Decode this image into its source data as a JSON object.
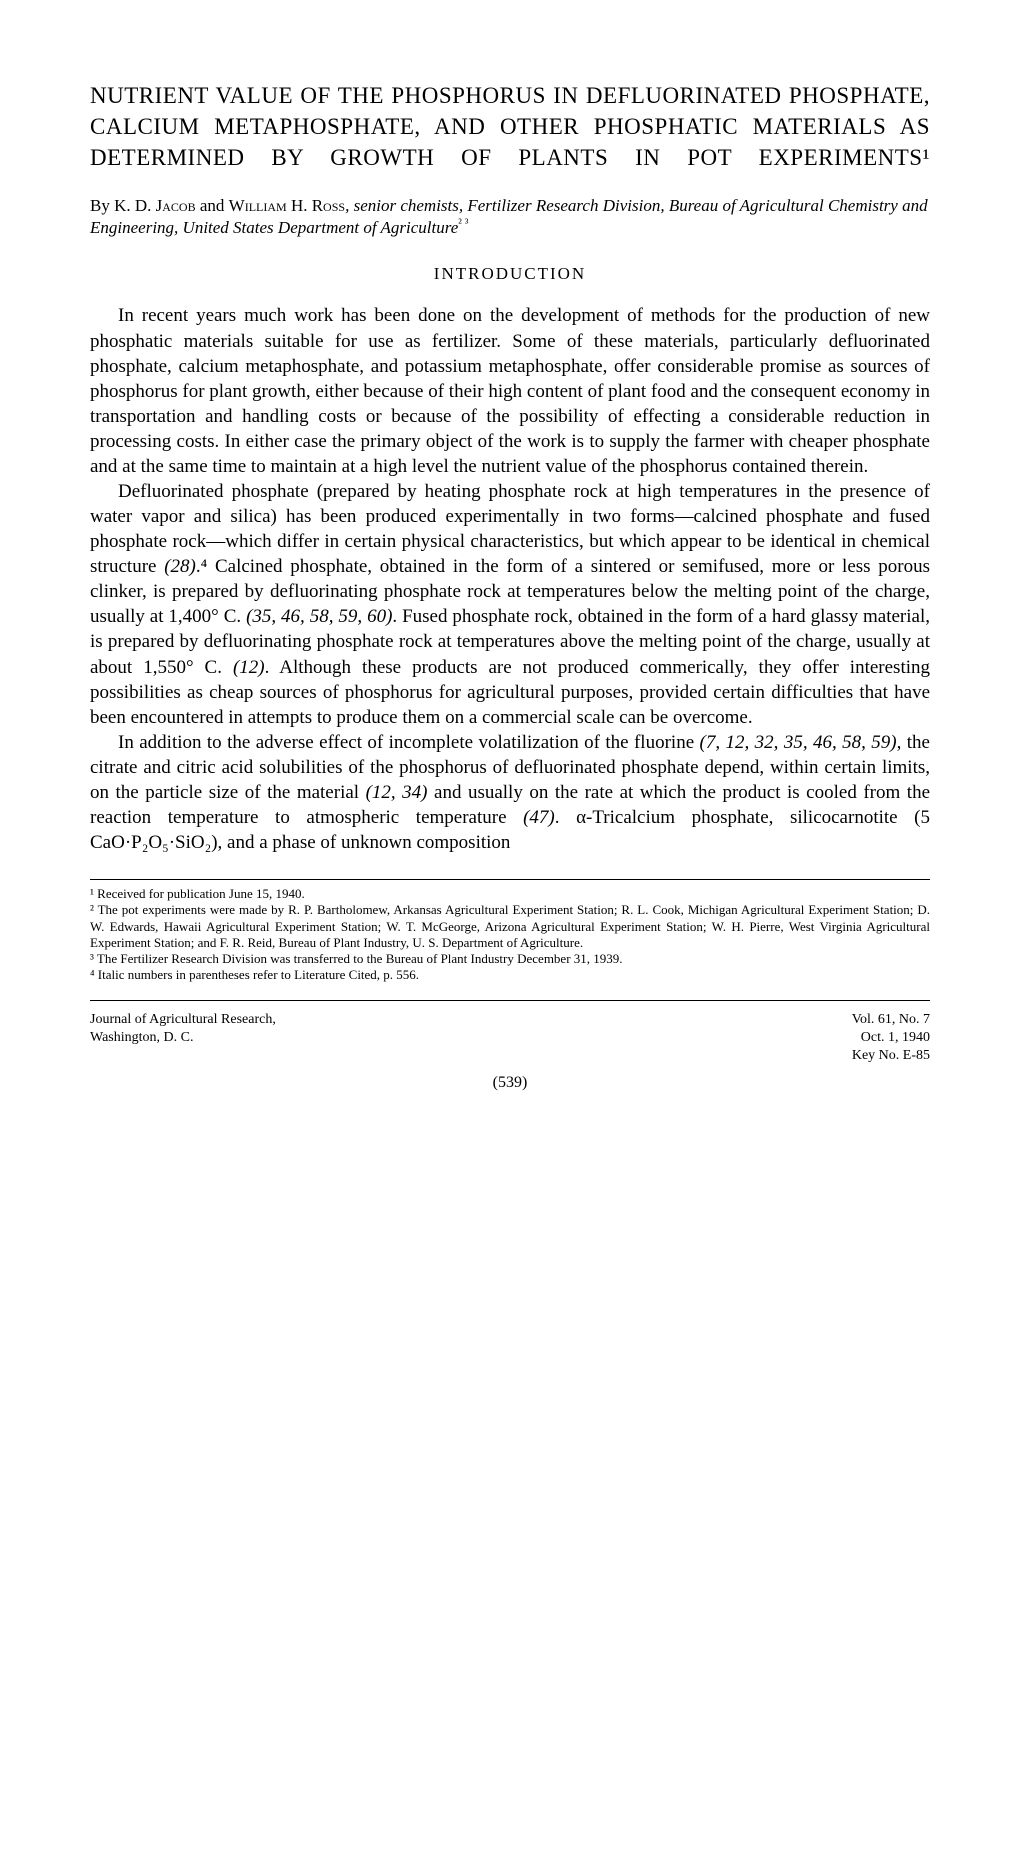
{
  "title": "NUTRIENT VALUE OF THE PHOSPHORUS IN DEFLUORI­NATED PHOSPHATE, CALCIUM METAPHOSPHATE, AND OTHER PHOSPHATIC MATERIALS AS DETERMINED BY GROWTH OF PLANTS IN POT EXPERIMENTS¹",
  "authors_prefix": "By ",
  "author1": "K. D. Jacob",
  "authors_and": " and ",
  "author2": "William H. Ross",
  "authors_role": ", senior chemists, Fertilizer Research Divi­sion, Bureau of Agricultural Chemistry and Engineering, United States Depart­ment of Agriculture",
  "authors_sup": "² ³",
  "section_heading": "INTRODUCTION",
  "paragraphs": {
    "p1": "In recent years much work has been done on the development of methods for the production of new phosphatic materials suitable for use as fertilizer. Some of these materials, particularly defluorinated phosphate, calcium metaphosphate, and potassium metaphosphate, offer considerable promise as sources of phosphorus for plant growth, either because of their high content of plant food and the consequent economy in transportation and handling costs or because of the possi­bility of effecting a considerable reduction in processing costs. In either case the primary object of the work is to supply the farmer with cheaper phosphate and at the same time to maintain at a high level the nutrient value of the phosphorus contained therein.",
    "p2_a": "Defluorinated phosphate (prepared by heating phosphate rock at high temperatures in the presence of water vapor and silica) has been produced experimentally in two forms—calcined phosphate and fused phosphate rock—which differ in certain physical characteristics, but which appear to be identical in chemical structure ",
    "p2_ref1": "(28)",
    "p2_b": ".⁴ Calcined phosphate, obtained in the form of a sintered or semifused, more or less porous clinker, is prepared by defluorinating phosphate rock at temperatures below the melting point of the charge, usually at 1,400° C. ",
    "p2_ref2": "(35, 46, 58, 59, 60)",
    "p2_c": ". Fused phosphate rock, obtained in the form of a hard glassy material, is prepared by defluorinating phosphate rock at temperatures above the melting point of the charge, usually at about 1,550° C. ",
    "p2_ref3": "(12)",
    "p2_d": ". Although these products are not produced commerically, they offer interesting possibilities as cheap sources of phosphorus for agricultural purposes, provided certain difficulties that have been encountered in attempts to produce them on a com­mercial scale can be overcome.",
    "p3_a": "In addition to the adverse effect of incomplete volatilization of the fluorine ",
    "p3_ref1": "(7, 12, 32, 35, 46, 58, 59)",
    "p3_b": ", the citrate and citric acid solubilities of the phosphorus of defluorinated phosphate depend, within certain limits, on the particle size of the material ",
    "p3_ref2": "(12, 34)",
    "p3_c": " and usually on the rate at which the product is cooled from the reaction temperature to atmospheric temperature ",
    "p3_ref3": "(47)",
    "p3_d": ". α-Tricalcium phosphate, silico­carnotite (5 CaO·P₂O₅·SiO₂), and a phase of unknown composition"
  },
  "footnotes": {
    "fn1": "¹ Received for publication June 15, 1940.",
    "fn2": "² The pot experiments were made by R. P. Bartholomew, Arkansas Agricultural Experiment Station; R. L. Cook, Michigan Agricultural Experiment Station; D. W. Edwards, Hawaii Agricultural Experiment Station; W. T. McGeorge, Arizona Agricultural Experiment Station; W. H. Pierre, West Virginia Agri­cultural Experiment Station; and F. R. Reid, Bureau of Plant Industry, U. S. Department of Agriculture.",
    "fn3": "³ The Fertilizer Research Division was transferred to the Bureau of Plant Industry December 31, 1939.",
    "fn4": "⁴ Italic numbers in parentheses refer to Literature Cited, p. 556."
  },
  "footer": {
    "journal": "Journal of Agricultural Research,",
    "location": "Washington, D. C.",
    "vol": "Vol. 61, No. 7",
    "date": "Oct. 1, 1940",
    "key": "Key No. E-85",
    "page": "(539)"
  }
}
